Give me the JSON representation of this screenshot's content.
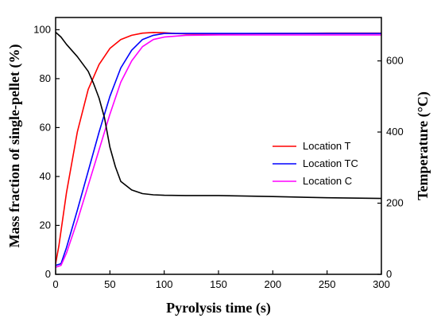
{
  "chart_data": {
    "type": "line",
    "title": "",
    "xlabel": "Pyrolysis time (s)",
    "ylabel": "Mass fraction of single-pellet (%)",
    "y2label": "Temperature (°C)",
    "xlim": [
      0,
      300
    ],
    "ylim": [
      0,
      105
    ],
    "y2lim": [
      0,
      722
    ],
    "xticks": [
      0,
      50,
      100,
      150,
      200,
      250,
      300
    ],
    "yticks": [
      0,
      20,
      40,
      60,
      80,
      100
    ],
    "y2ticks": [
      0,
      200,
      400,
      600
    ],
    "grid": false,
    "legend_position": "center-right",
    "series": [
      {
        "name": "Location T",
        "axis": "right",
        "color": "#ff0000",
        "x": [
          0,
          3,
          10,
          20,
          30,
          40,
          50,
          60,
          70,
          80,
          90,
          100,
          110,
          120,
          150,
          200,
          250,
          300
        ],
        "y": [
          30,
          80,
          230,
          400,
          520,
          590,
          635,
          660,
          672,
          678,
          680,
          679,
          677,
          676,
          676,
          677,
          678,
          678
        ]
      },
      {
        "name": "Location TC",
        "axis": "right",
        "color": "#0000ff",
        "x": [
          0,
          5,
          10,
          20,
          30,
          40,
          50,
          60,
          70,
          80,
          90,
          100,
          120,
          150,
          200,
          250,
          300
        ],
        "y": [
          25,
          30,
          75,
          180,
          290,
          400,
          500,
          580,
          630,
          660,
          672,
          677,
          677,
          677,
          677,
          677,
          677
        ]
      },
      {
        "name": "Location C",
        "axis": "right",
        "color": "#ff00ff",
        "x": [
          0,
          5,
          10,
          20,
          30,
          40,
          50,
          60,
          70,
          80,
          90,
          100,
          120,
          150,
          200,
          250,
          300
        ],
        "y": [
          20,
          25,
          60,
          150,
          250,
          350,
          450,
          540,
          600,
          640,
          660,
          667,
          672,
          673,
          673,
          673,
          673
        ]
      },
      {
        "name": "",
        "axis": "left",
        "color": "#000000",
        "x": [
          0,
          5,
          10,
          20,
          30,
          35,
          40,
          45,
          50,
          55,
          60,
          70,
          80,
          90,
          100,
          120,
          150,
          200,
          250,
          300
        ],
        "y": [
          99,
          97,
          94,
          89,
          83,
          78,
          72,
          64,
          52,
          44,
          38,
          34.5,
          33,
          32.5,
          32.3,
          32.2,
          32.2,
          31.8,
          31.3,
          31
        ]
      }
    ]
  }
}
